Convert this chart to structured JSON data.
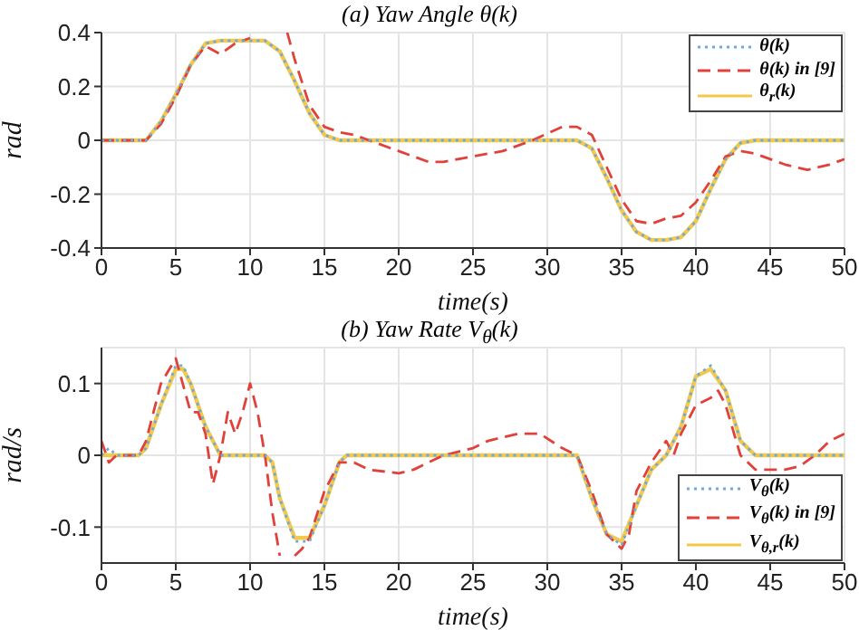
{
  "chart_data": [
    {
      "type": "line",
      "title": "(a) Yaw Angle θ(k)",
      "xlabel": "time(s)",
      "ylabel": "rad",
      "xlim": [
        0,
        50
      ],
      "xticks": [
        0,
        5,
        10,
        15,
        20,
        25,
        30,
        35,
        40,
        45,
        50
      ],
      "ylim": [
        -0.4,
        0.4
      ],
      "yticks": [
        -0.4,
        -0.2,
        0,
        0.2,
        0.4
      ],
      "grid": true,
      "legend": "top right",
      "marker": "none",
      "series": [
        {
          "name": "θ(k)",
          "color": "#6fa8dc",
          "line_style": "dotted",
          "x": [
            0,
            3,
            4,
            5,
            6,
            7,
            8,
            9,
            10,
            11,
            12,
            13,
            14,
            15,
            16,
            20,
            25,
            30,
            32,
            33,
            34,
            35,
            36,
            37,
            38,
            39,
            40,
            41,
            42,
            43,
            44,
            50
          ],
          "values": [
            0,
            0,
            0.07,
            0.17,
            0.28,
            0.36,
            0.37,
            0.37,
            0.37,
            0.37,
            0.33,
            0.22,
            0.1,
            0.02,
            0,
            0,
            0,
            0,
            0,
            -0.03,
            -0.14,
            -0.26,
            -0.34,
            -0.37,
            -0.37,
            -0.36,
            -0.3,
            -0.18,
            -0.07,
            -0.01,
            0,
            0
          ]
        },
        {
          "name": "θ(k) in [9]",
          "color": "#e0413a",
          "line_style": "dashed",
          "x": [
            0,
            3,
            4,
            5,
            6,
            7,
            8,
            9,
            10,
            10.5,
            12.5,
            13,
            14,
            15,
            16,
            17,
            18,
            20,
            22,
            23,
            25,
            27,
            29,
            31,
            32,
            33,
            34,
            35,
            36,
            37,
            38,
            39,
            40,
            41,
            42,
            43,
            44,
            46,
            47.5,
            49,
            50
          ],
          "values": [
            0,
            0,
            0.06,
            0.16,
            0.28,
            0.35,
            0.32,
            0.36,
            0.38,
            null,
            0.4,
            0.3,
            0.13,
            0.05,
            0.03,
            0.02,
            0,
            -0.04,
            -0.08,
            -0.08,
            -0.06,
            -0.04,
            0,
            0.05,
            0.05,
            0.02,
            -0.1,
            -0.22,
            -0.3,
            -0.31,
            -0.29,
            -0.28,
            -0.23,
            -0.15,
            -0.06,
            -0.04,
            -0.05,
            -0.09,
            -0.11,
            -0.09,
            -0.07
          ]
        },
        {
          "name": "θ$_{r}$(k)",
          "color": "#f2c94c",
          "line_style": "solid",
          "x": [
            0,
            3,
            4,
            5,
            6,
            7,
            8,
            9,
            10,
            11,
            12,
            13,
            14,
            15,
            16,
            20,
            25,
            30,
            32,
            33,
            34,
            35,
            36,
            37,
            38,
            39,
            40,
            41,
            42,
            43,
            44,
            50
          ],
          "values": [
            0,
            0,
            0.07,
            0.17,
            0.28,
            0.36,
            0.37,
            0.37,
            0.37,
            0.37,
            0.33,
            0.22,
            0.1,
            0.02,
            0,
            0,
            0,
            0,
            0,
            -0.03,
            -0.14,
            -0.26,
            -0.34,
            -0.37,
            -0.37,
            -0.36,
            -0.3,
            -0.18,
            -0.07,
            -0.01,
            0,
            0
          ]
        }
      ]
    },
    {
      "type": "line",
      "title": "(b) Yaw Rate V$_{θ}$(k)",
      "xlabel": "time(s)",
      "ylabel": "rad/s",
      "xlim": [
        0,
        50
      ],
      "xticks": [
        0,
        5,
        10,
        15,
        20,
        25,
        30,
        35,
        40,
        45,
        50
      ],
      "ylim": [
        -0.15,
        0.15
      ],
      "yticks": [
        -0.1,
        0,
        0.1
      ],
      "grid": true,
      "legend": "bottom right",
      "marker": "none",
      "series": [
        {
          "name": "V$_{θ}$(k)",
          "color": "#6fa8dc",
          "line_style": "dotted",
          "x": [
            0,
            0.5,
            1,
            2.5,
            3,
            4,
            5,
            5.5,
            6,
            7,
            8,
            11,
            11.5,
            12,
            13,
            14,
            15,
            16,
            16.5,
            32,
            33,
            34,
            35,
            36,
            37,
            38,
            39,
            40,
            41,
            42,
            43,
            44,
            50
          ],
          "values": [
            0,
            0.01,
            0,
            0,
            0.01,
            0.07,
            0.125,
            0.125,
            0.1,
            0.04,
            0,
            0,
            -0.01,
            -0.06,
            -0.12,
            -0.12,
            -0.07,
            -0.01,
            0,
            0,
            -0.06,
            -0.11,
            -0.125,
            -0.07,
            -0.02,
            0,
            0.04,
            0.11,
            0.125,
            0.09,
            0.02,
            0,
            0
          ]
        },
        {
          "name": "V$_{θ}$(k) in [9]",
          "color": "#e0413a",
          "line_style": "dashed",
          "x": [
            0,
            0.5,
            1,
            2.5,
            3,
            4,
            5,
            6,
            6.5,
            7,
            7.5,
            8,
            8.5,
            9,
            9.5,
            10,
            10.5,
            11,
            11.5,
            12,
            12.5,
            13,
            13.5,
            14,
            15,
            16,
            17,
            18,
            20,
            21,
            22,
            23,
            24,
            25,
            26,
            28,
            29.5,
            31,
            32,
            33,
            34,
            35,
            35.5,
            36,
            37,
            38,
            38.5,
            39,
            40,
            41,
            41.5,
            42,
            43,
            44,
            46,
            47,
            48,
            49,
            50
          ],
          "values": [
            0.02,
            -0.01,
            0,
            0,
            0.02,
            0.1,
            0.135,
            0.06,
            0.06,
            0.03,
            -0.04,
            0,
            0.06,
            0.03,
            0.06,
            0.1,
            0.06,
            0,
            -0.08,
            -0.14,
            null,
            -0.14,
            -0.13,
            -0.115,
            -0.05,
            -0.01,
            -0.01,
            -0.02,
            -0.025,
            -0.02,
            -0.01,
            0,
            0.005,
            0.01,
            0.02,
            0.03,
            0.03,
            0.01,
            0,
            -0.05,
            -0.11,
            -0.13,
            -0.11,
            -0.05,
            -0.01,
            0.02,
            0,
            0.03,
            0.07,
            0.08,
            0.09,
            0.07,
            0,
            -0.02,
            -0.02,
            -0.015,
            0,
            0.02,
            0.03
          ]
        },
        {
          "name": "V$_{θ,r}$(k)",
          "color": "#f2c94c",
          "line_style": "solid",
          "x": [
            0,
            2.5,
            3,
            4,
            5,
            5.5,
            6,
            7,
            8,
            11,
            11.5,
            12,
            13,
            14,
            15,
            16,
            16.5,
            32,
            33,
            34,
            35,
            36,
            37,
            38,
            39,
            40,
            41,
            42,
            43,
            44,
            50
          ],
          "values": [
            0,
            0,
            0.01,
            0.07,
            0.12,
            0.12,
            0.1,
            0.04,
            0,
            0,
            -0.01,
            -0.06,
            -0.115,
            -0.115,
            -0.07,
            -0.01,
            0,
            0,
            -0.06,
            -0.11,
            -0.12,
            -0.07,
            -0.02,
            0,
            0.04,
            0.11,
            0.12,
            0.09,
            0.02,
            0,
            0
          ]
        }
      ]
    }
  ]
}
